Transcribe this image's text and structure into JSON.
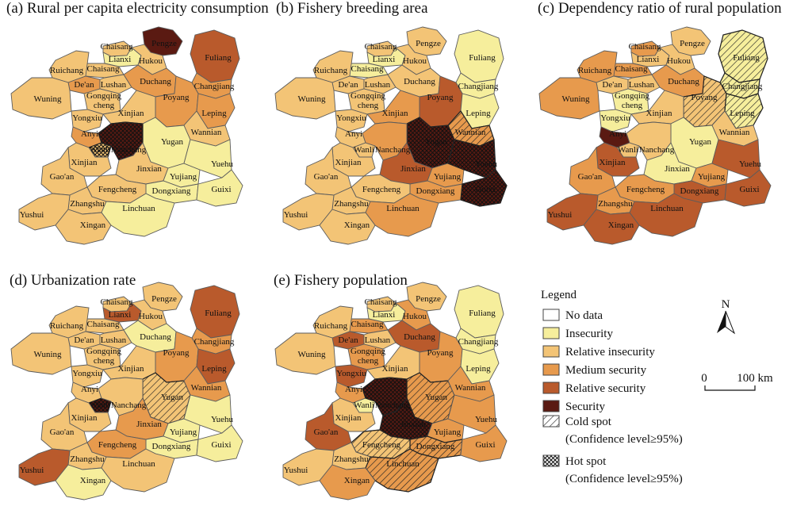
{
  "colors": {
    "no_data": "#ffffff",
    "insecurity": "#f6ee9c",
    "relative_insecurity": "#f3c476",
    "medium_security": "#e79a4d",
    "relative_security": "#b95a2c",
    "security": "#5a1a12",
    "border": "#5c5c5c"
  },
  "panels": [
    {
      "title": "(a) Rural per capita electricity consumption"
    },
    {
      "title": "(b) Fishery breeding area"
    },
    {
      "title": "(c) Dependency ratio of rural population"
    },
    {
      "title": "(d) Urbanization rate"
    },
    {
      "title": "(e) Fishery population"
    }
  ],
  "county_labels": {
    "chaisang1": "Chaisang",
    "pengze": "Pengze",
    "lianxi": "Lianxi",
    "chaisang2": "Chaisang",
    "ruichang": "Ruichang",
    "hukou": "Hukou",
    "fuliang": "Fuliang",
    "dean": "De'an",
    "lushan": "Lushan",
    "duchang": "Duchang",
    "changjiang": "Changjiang",
    "wuning": "Wuning",
    "gongqing": "Gongqing",
    "cheng": "cheng",
    "poyang": "Poyang",
    "leping": "Leping",
    "yongxiu": "Yongxiu",
    "xinjian1": "Xinjian",
    "anyi": "Anyi",
    "wanli": "Wanli",
    "yugan": "Yugan",
    "wannian": "Wannian",
    "nanchang": "Nanchang",
    "xinjian2": "Xinjian",
    "jinxian": "Jinxian",
    "gaoan": "Gao'an",
    "yujiang": "Yujiang",
    "yuehu": "Yuehu",
    "dongxiang": "Dongxiang",
    "fengcheng": "Fengcheng",
    "guixi": "Guixi",
    "zhangshu": "Zhangshu",
    "linchuan": "Linchuan",
    "yushui": "Yushui",
    "xingan": "Xingan"
  },
  "map_states": {
    "a": {
      "chaisang1": "ri",
      "pengze": "s",
      "lianxi": "i",
      "chaisang2": "ri",
      "ruichang": "ri",
      "hukou": "ri",
      "fuliang": "rs",
      "dean": "ms",
      "lushan": "ri",
      "duchang": "ms",
      "changjiang": "ms",
      "wuning": "ri",
      "gongqing": "ri",
      "poyang": "ms",
      "leping": "ms",
      "yongxiu": "ri",
      "xinjian1": "ri",
      "anyi": "ms",
      "wanli": "ri",
      "yugan": "i",
      "wannian": "ri",
      "nanchang": "s",
      "xinjian2": "ri",
      "jinxian": "ri",
      "gaoan": "ri",
      "yujiang": "i",
      "yuehu": "i",
      "dongxiang": "i",
      "fengcheng": "ri",
      "guixi": "i",
      "zhangshu": "ri",
      "linchuan": "i",
      "yushui": "ri",
      "xingan": "ri"
    },
    "b": {
      "chaisang1": "ri",
      "pengze": "ri",
      "lianxi": "i",
      "chaisang2": "i",
      "ruichang": "ri",
      "hukou": "ri",
      "fuliang": "i",
      "dean": "ri",
      "lushan": "ri",
      "duchang": "ri",
      "changjiang": "i",
      "wuning": "ri",
      "gongqing": "ri",
      "poyang": "rs",
      "leping": "i",
      "yongxiu": "ri",
      "xinjian1": "ms",
      "anyi": "ri",
      "wanli": "ri",
      "yugan": "s",
      "wannian": "ms",
      "nanchang": "ms",
      "xinjian2": "ri",
      "jinxian": "rs",
      "gaoan": "ri",
      "yujiang": "ms",
      "yuehu": "s",
      "dongxiang": "ms",
      "fengcheng": "ri",
      "guixi": "s",
      "zhangshu": "ri",
      "linchuan": "ms",
      "yushui": "ri",
      "xingan": "ri"
    },
    "c": {
      "chaisang1": "ms",
      "pengze": "ri",
      "lianxi": "ri",
      "chaisang2": "ms",
      "ruichang": "ms",
      "hukou": "ri",
      "fuliang": "i",
      "dean": "ri",
      "lushan": "ri",
      "duchang": "ms",
      "changjiang": "i",
      "wuning": "ms",
      "gongqing": "i",
      "poyang": "ri",
      "leping": "i",
      "yongxiu": "i",
      "xinjian1": "ri",
      "anyi": "s",
      "wanli": "ri",
      "yugan": "i",
      "wannian": "ri",
      "nanchang": "ri",
      "xinjian2": "rs",
      "jinxian": "i",
      "gaoan": "ms",
      "yujiang": "ms",
      "yuehu": "rs",
      "dongxiang": "rs",
      "fengcheng": "ms",
      "guixi": "rs",
      "zhangshu": "ms",
      "linchuan": "rs",
      "yushui": "rs",
      "xingan": "rs"
    },
    "d": {
      "chaisang1": "ri",
      "pengze": "ri",
      "lianxi": "rs",
      "chaisang2": "ri",
      "ruichang": "ri",
      "hukou": "ri",
      "fuliang": "rs",
      "dean": "ri",
      "lushan": "ri",
      "duchang": "i",
      "changjiang": "ms",
      "wuning": "ri",
      "gongqing": "ri",
      "poyang": "ms",
      "leping": "rs",
      "yongxiu": "ri",
      "xinjian1": "ri",
      "anyi": "ri",
      "wanli": "s",
      "yugan": "ri",
      "wannian": "ms",
      "nanchang": "ri",
      "xinjian2": "ri",
      "jinxian": "ms",
      "gaoan": "ri",
      "yujiang": "i",
      "yuehu": "i",
      "dongxiang": "i",
      "fengcheng": "ms",
      "guixi": "i",
      "zhangshu": "ri",
      "linchuan": "ri",
      "yushui": "rs",
      "xingan": "i"
    },
    "e": {
      "chaisang1": "ri",
      "pengze": "ri",
      "lianxi": "i",
      "chaisang2": "ms",
      "ruichang": "ri",
      "hukou": "ms",
      "fuliang": "i",
      "dean": "rs",
      "lushan": "ri",
      "duchang": "rs",
      "changjiang": "i",
      "wuning": "ri",
      "gongqing": "ms",
      "poyang": "ms",
      "leping": "i",
      "yongxiu": "rs",
      "xinjian1": "ri",
      "anyi": "ms",
      "wanli": "i",
      "yugan": "ms",
      "wannian": "ms",
      "nanchang": "s",
      "xinjian2": "ri",
      "jinxian": "s",
      "gaoan": "rs",
      "yujiang": "ms",
      "yuehu": "ms",
      "dongxiang": "ms",
      "fengcheng": "ri",
      "guixi": "ms",
      "zhangshu": "ri",
      "linchuan": "ms",
      "yushui": "ri",
      "xingan": "ms"
    }
  },
  "spots": {
    "a": {
      "hot": [
        "nanchang",
        "wanli"
      ],
      "cold": []
    },
    "b": {
      "hot": [
        "yugan",
        "yuehu",
        "guixi"
      ],
      "cold": [
        "wannian"
      ]
    },
    "c": {
      "hot": [],
      "cold": [
        "fuliang",
        "poyang",
        "changjiang",
        "leping"
      ]
    },
    "d": {
      "hot": [
        "wanli"
      ],
      "cold": [
        "yugan"
      ]
    },
    "e": {
      "hot": [
        "nanchang",
        "jinxian"
      ],
      "cold": [
        "yugan",
        "fengcheng",
        "linchuan",
        "dongxiang"
      ]
    }
  },
  "legend": {
    "title": "Legend",
    "items": [
      {
        "key": "no_data",
        "label": "No data"
      },
      {
        "key": "insecurity",
        "label": "Insecurity"
      },
      {
        "key": "relative_insecurity",
        "label": "Relative insecurity"
      },
      {
        "key": "medium_security",
        "label": "Medium security"
      },
      {
        "key": "relative_security",
        "label": "Relative security"
      },
      {
        "key": "security",
        "label": "Security"
      }
    ],
    "cold_spot": "Cold spot",
    "cold_spot_note": "(Confidence level≥95%)",
    "hot_spot": "Hot spot",
    "hot_spot_note": "(Confidence level≥95%)"
  },
  "north_arrow": "N",
  "scale_bar": {
    "start": "0",
    "end": "100 km"
  }
}
